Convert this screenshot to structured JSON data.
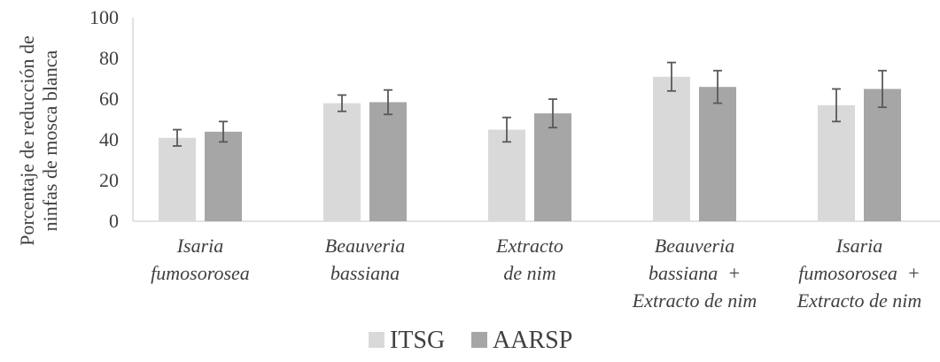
{
  "chart_data": {
    "type": "bar",
    "ylabel_lines": [
      "Porcentaje  de reducción de",
      "ninfas de mosca blanca"
    ],
    "ylim": [
      0,
      100
    ],
    "yticks": [
      "0",
      "20",
      "40",
      "60",
      "80",
      "100"
    ],
    "grid": false,
    "legend_position": "bottom",
    "categories": [
      {
        "lines": [
          "Isaria",
          "fumosorosea"
        ]
      },
      {
        "lines": [
          "Beauveria",
          "bassiana"
        ]
      },
      {
        "lines": [
          "Extracto",
          "de nim"
        ]
      },
      {
        "lines": [
          "Beauveria",
          "bassiana  +",
          "Extracto de nim"
        ]
      },
      {
        "lines": [
          "Isaria",
          "fumosorosea  +",
          "Extracto de nim"
        ]
      }
    ],
    "series": [
      {
        "name": "ITSG",
        "color": "#d9d9d9",
        "values": [
          41,
          58,
          45,
          71,
          57
        ],
        "errors": [
          4,
          4,
          6,
          7,
          8
        ]
      },
      {
        "name": "AARSP",
        "color": "#a6a6a6",
        "values": [
          44,
          58.5,
          53,
          66,
          65
        ],
        "errors": [
          5,
          6,
          7,
          8,
          9
        ]
      }
    ]
  }
}
